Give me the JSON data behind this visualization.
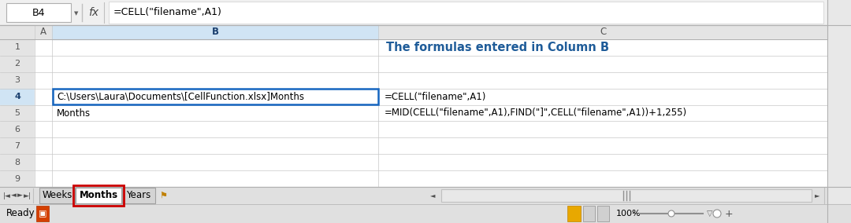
{
  "fig_width": 10.8,
  "fig_height": 2.84,
  "bg_color": "#f0f0f0",
  "cell_ref": "B4",
  "formula_text": "=CELL(\"filename\",A1)",
  "title_text": "The formulas entered in Column B",
  "title_color": "#1F5C99",
  "col_headers": [
    "A",
    "B",
    "C"
  ],
  "row_labels": [
    "1",
    "2",
    "3",
    "4",
    "5",
    "6",
    "7",
    "8",
    "9"
  ],
  "grid_color": "#c8c8c8",
  "header_bg": "#e4e4e4",
  "header_text_color": "#555555",
  "selected_header_bg": "#d0e4f4",
  "selected_header_text": "#1a3f6e",
  "cell_b4_text": "C:\\Users\\Laura\\Documents\\[CellFunction.xlsx]Months",
  "cell_b5_text": "Months",
  "formula_c4_text": "=CELL(\"filename\",A1)",
  "formula_c5_text": "=MID(CELL(\"filename\",A1),FIND(\"]\",CELL(\"filename\",A1))+1,255)",
  "cell_text_color": "#000000",
  "tab_labels": [
    "Weeks",
    "Months",
    "Years"
  ],
  "tab_active": "Months",
  "tab_active_border": "#cc0000",
  "status_ready": "Ready",
  "toolbar_bg": "#f0f0f0",
  "sheet_bg": "#ffffff",
  "right_scroll_bg": "#e8e8e8",
  "statusbar_bg": "#e0e0e0"
}
